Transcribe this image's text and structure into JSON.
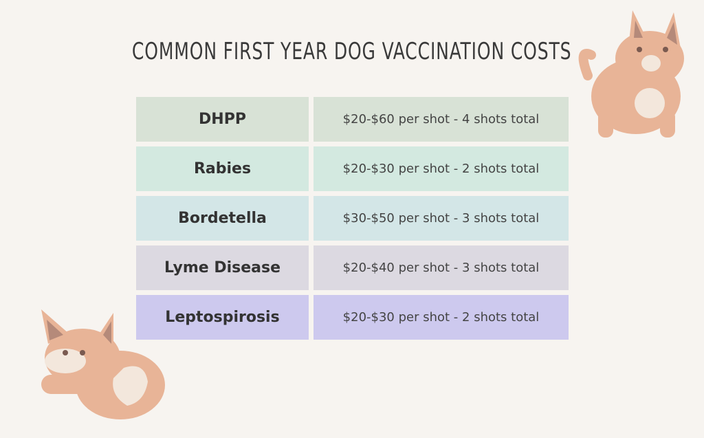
{
  "title": "COMMON FIRST YEAR DOG VACCINATION COSTS",
  "table": {
    "rows": [
      [
        "DHPP",
        "$20-$60 per shot - 4 shots total"
      ],
      [
        "Rabies",
        "$20-$30 per shot - 2 shots total"
      ],
      [
        "Bordetella",
        "$30-$50 per shot - 3 shots total"
      ],
      [
        "Lyme Disease",
        "$20-$40 per shot - 3 shots total"
      ],
      [
        "Leptospirosis",
        "$20-$30 per shot - 2 shots total"
      ]
    ]
  }
}
